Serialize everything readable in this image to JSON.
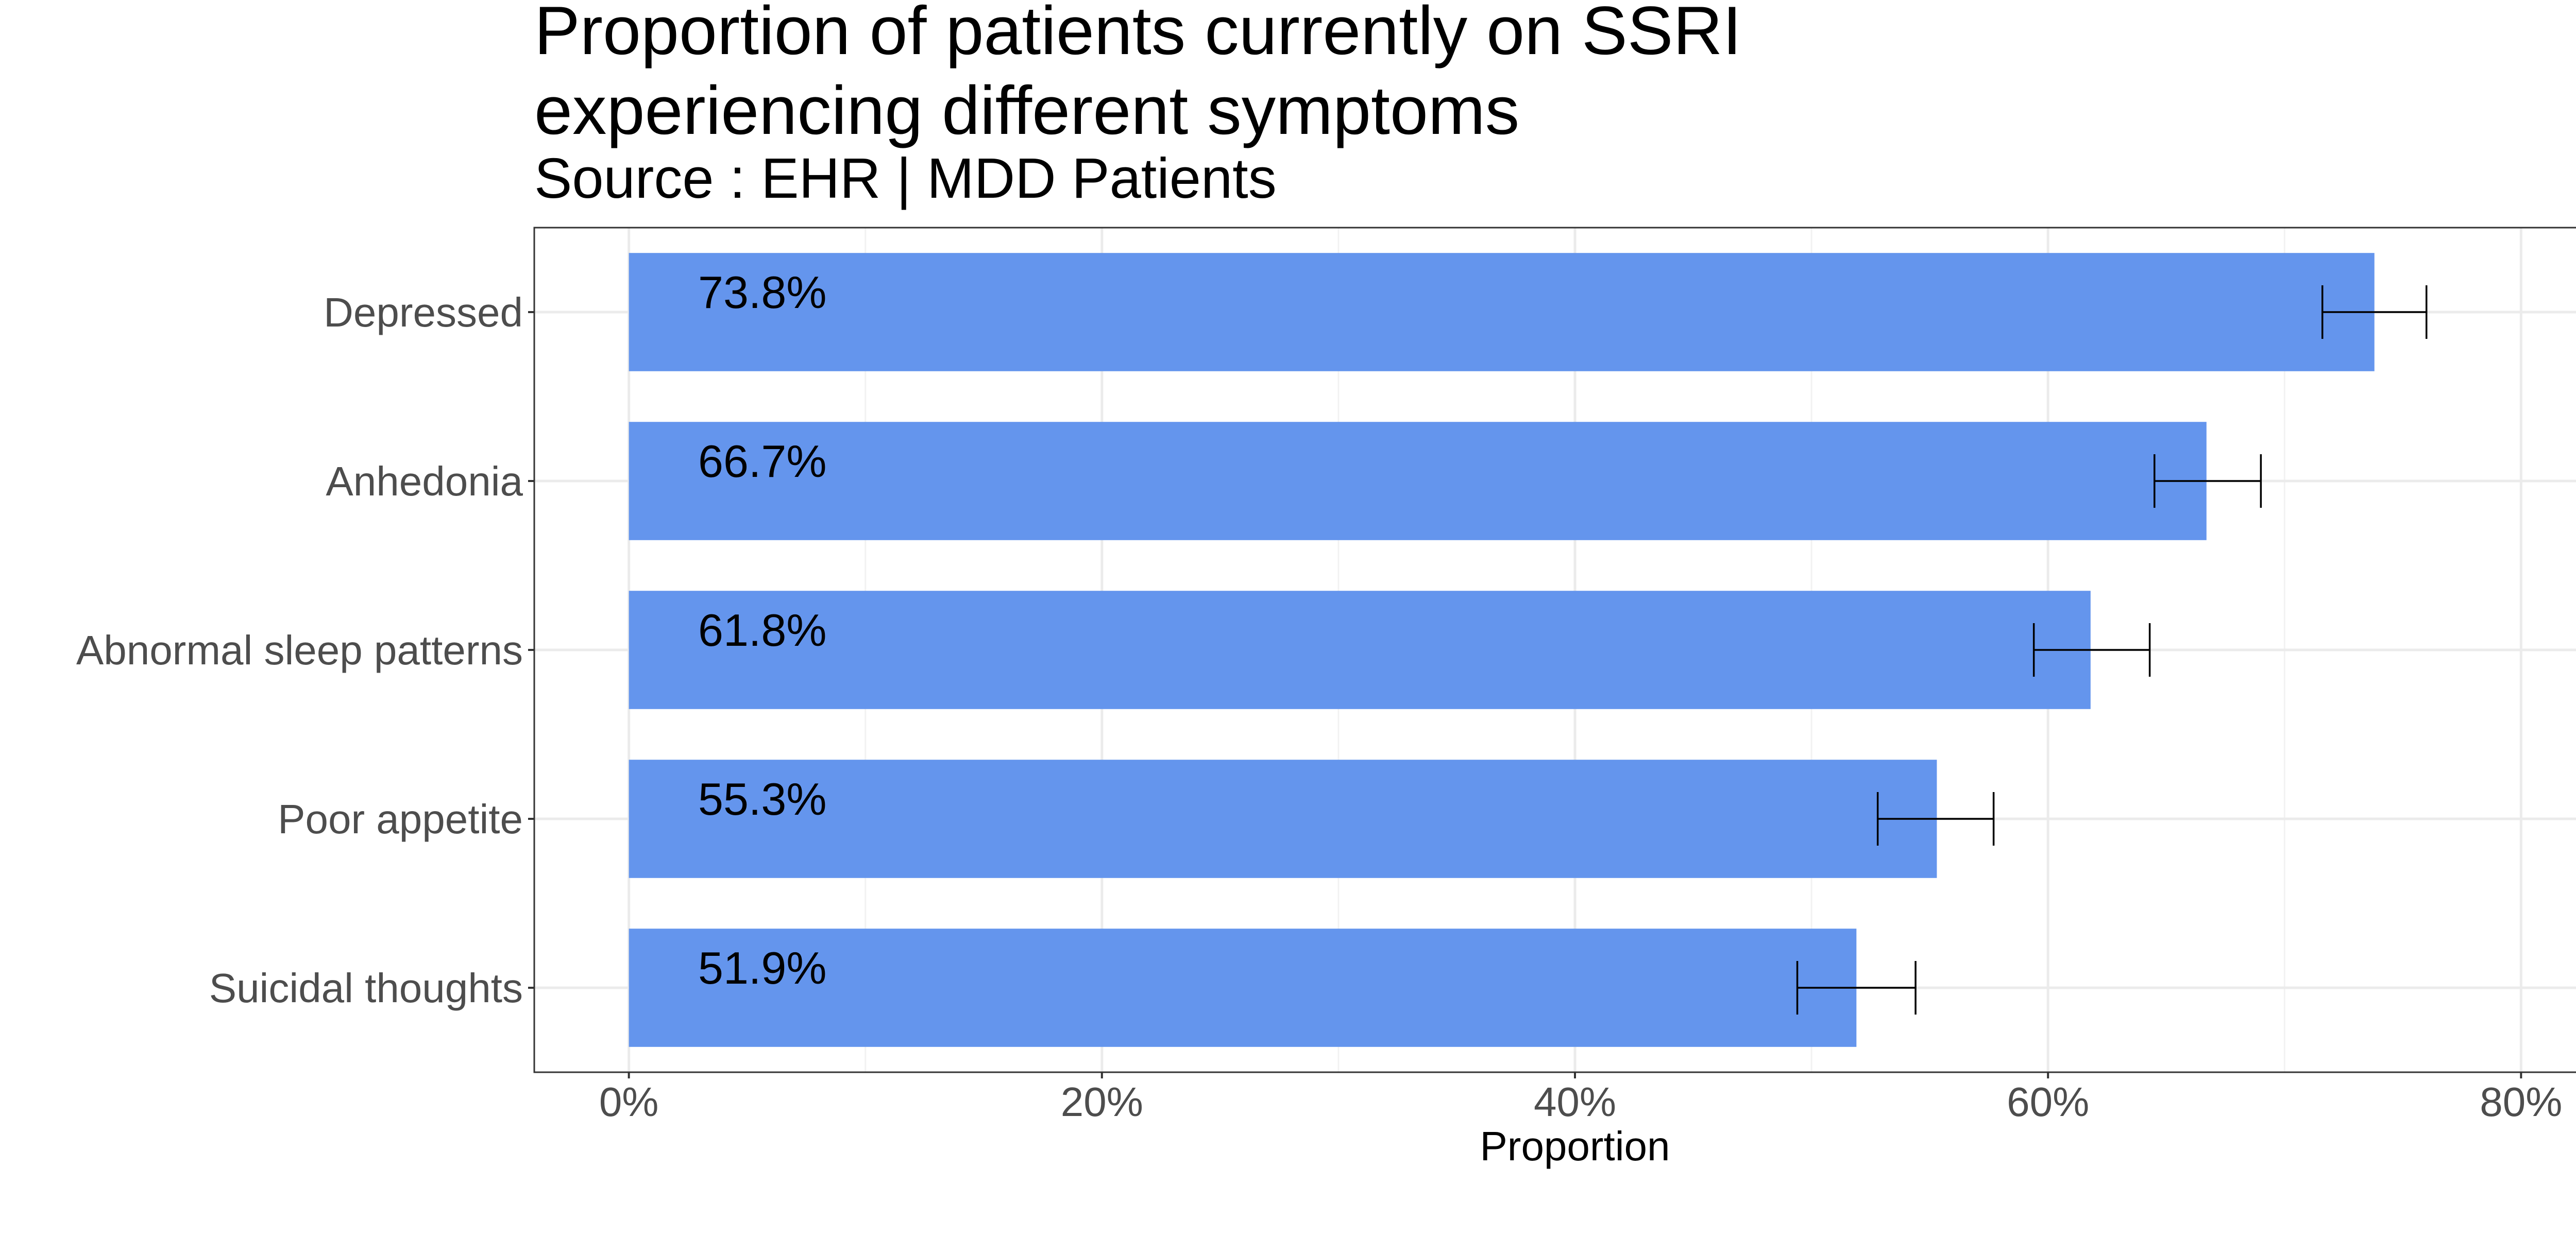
{
  "chart_data": {
    "type": "bar",
    "orientation": "horizontal",
    "title": "Proportion of patients currently on SSRI\nexperiencing different symptoms",
    "title_lines": [
      "Proportion of patients currently on SSRI",
      "experiencing different symptoms"
    ],
    "subtitle": "Source : EHR | MDD Patients",
    "xlabel": "Proportion",
    "ylabel": "",
    "xlim": [
      -0.04,
      0.84
    ],
    "x_ticks": [
      0,
      0.2,
      0.4,
      0.6,
      0.8
    ],
    "x_tick_labels": [
      "0%",
      "20%",
      "40%",
      "60%",
      "80%"
    ],
    "grid": true,
    "legend": "none",
    "bar_color": "#6495ED",
    "categories": [
      "Depressed",
      "Anhedonia",
      "Abnormal sleep patterns",
      "Poor appetite",
      "Suicidal thoughts"
    ],
    "values": [
      0.738,
      0.667,
      0.618,
      0.553,
      0.519
    ],
    "value_labels": [
      "73.8%",
      "66.7%",
      "61.8%",
      "55.3%",
      "51.9%"
    ],
    "error_low": [
      0.716,
      0.645,
      0.594,
      0.528,
      0.494
    ],
    "error_high": [
      0.76,
      0.69,
      0.643,
      0.577,
      0.544
    ]
  }
}
